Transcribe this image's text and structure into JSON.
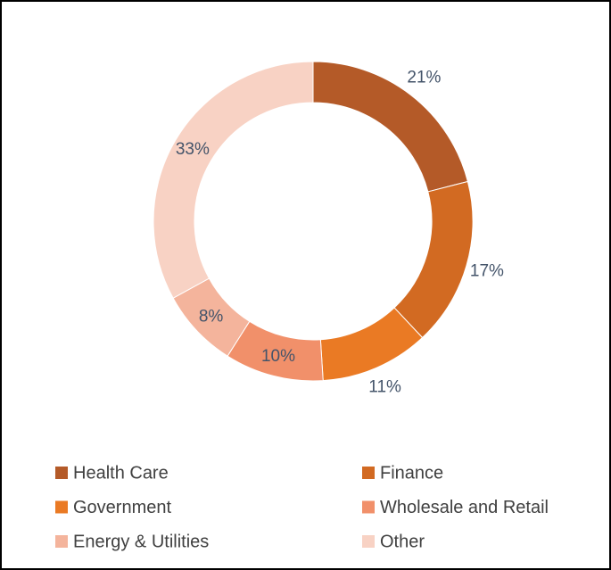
{
  "chart_data": {
    "type": "donut",
    "categories": [
      "Health Care",
      "Finance",
      "Government",
      "Wholesale and Retail",
      "Energy & Utilities",
      "Other"
    ],
    "values": [
      21,
      17,
      11,
      10,
      8,
      33
    ],
    "value_labels": [
      "21%",
      "17%",
      "11%",
      "10%",
      "8%",
      "33%"
    ],
    "colors": [
      "#b45a28",
      "#d26a22",
      "#ea7a24",
      "#f1906a",
      "#f4b49c",
      "#f8d2c4"
    ],
    "legend": "bottom"
  }
}
